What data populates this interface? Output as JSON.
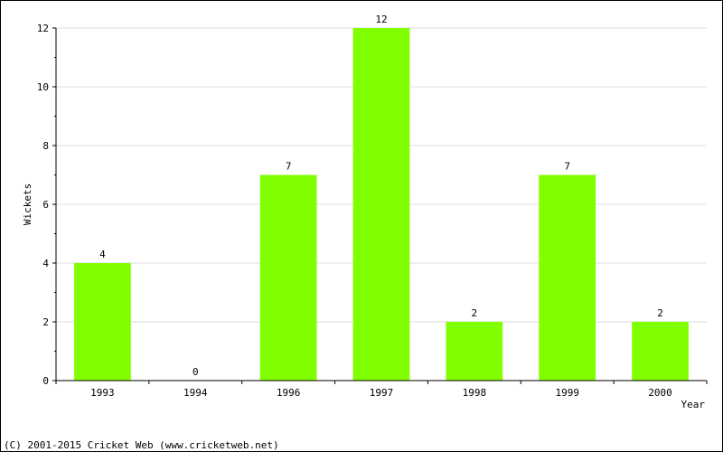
{
  "chart_data": {
    "type": "bar",
    "categories": [
      "1993",
      "1994",
      "1996",
      "1997",
      "1998",
      "1999",
      "2000"
    ],
    "values": [
      4,
      0,
      7,
      12,
      2,
      7,
      2
    ],
    "xlabel": "Year",
    "ylabel": "Wickets",
    "ylim": [
      0,
      12
    ],
    "yticks": [
      "0",
      "2",
      "4",
      "6",
      "8",
      "10",
      "12"
    ],
    "data_labels": [
      "4",
      "0",
      "7",
      "12",
      "2",
      "7",
      "2"
    ],
    "grid": true,
    "bar_color": "#80ff00",
    "grid_color": "#dddddd"
  },
  "footer": {
    "copyright": "(C) 2001-2015 Cricket Web (www.cricketweb.net)"
  }
}
